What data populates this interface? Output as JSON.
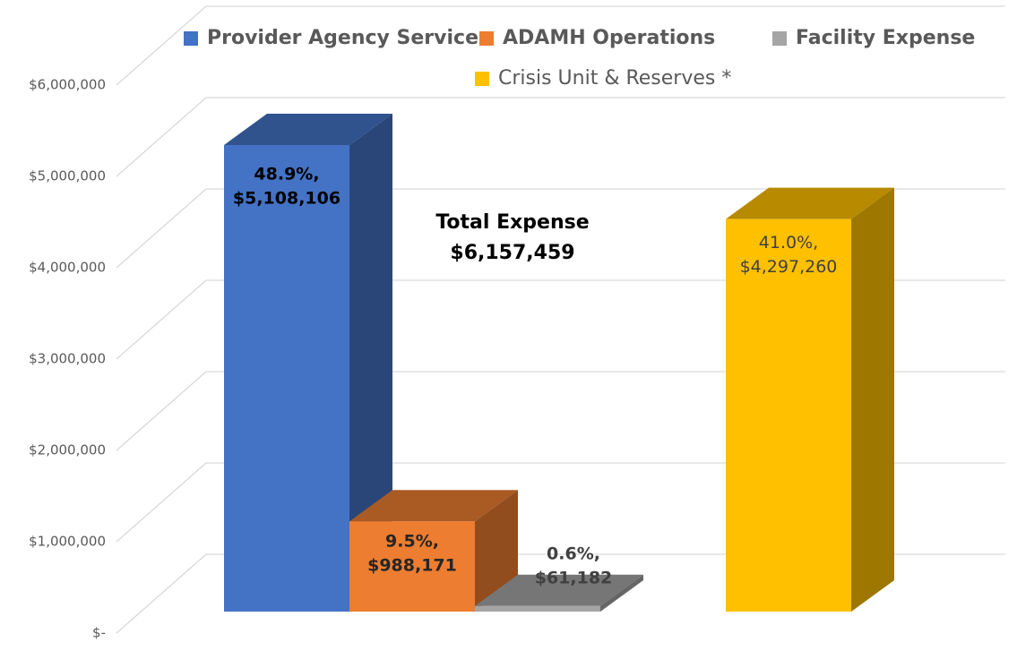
{
  "chart_data": {
    "type": "bar3d",
    "annotations": [
      "Total Expense",
      "$6,157,459"
    ],
    "ylim": [
      0,
      6000000
    ],
    "yticks": [
      {
        "value": 0,
        "label": "$-"
      },
      {
        "value": 1000000,
        "label": "$1,000,000"
      },
      {
        "value": 2000000,
        "label": "$2,000,000"
      },
      {
        "value": 3000000,
        "label": "$3,000,000"
      },
      {
        "value": 4000000,
        "label": "$4,000,000"
      },
      {
        "value": 5000000,
        "label": "$5,000,000"
      },
      {
        "value": 6000000,
        "label": "$6,000,000"
      }
    ],
    "grid": true,
    "series": [
      {
        "name": "Provider Agency Services",
        "color": "#4472c4",
        "values": [
          5108106
        ],
        "value_labels": [
          [
            "48.9%,",
            "$5,108,106"
          ]
        ]
      },
      {
        "name": "ADAMH Operations",
        "color": "#ed7d31",
        "values": [
          988171
        ],
        "value_labels": [
          [
            "9.5%,",
            "$988,171"
          ]
        ]
      },
      {
        "name": "Facility Expense",
        "color": "#a5a5a5",
        "values": [
          61182
        ],
        "value_labels": [
          [
            "0.6%,",
            "$61,182"
          ]
        ]
      },
      {
        "name": "Crisis Unit & Reserves *",
        "color": "#ffc000",
        "values": [
          4297260
        ],
        "value_labels": [
          [
            "41.0%,",
            "$4,297,260"
          ]
        ]
      }
    ]
  }
}
